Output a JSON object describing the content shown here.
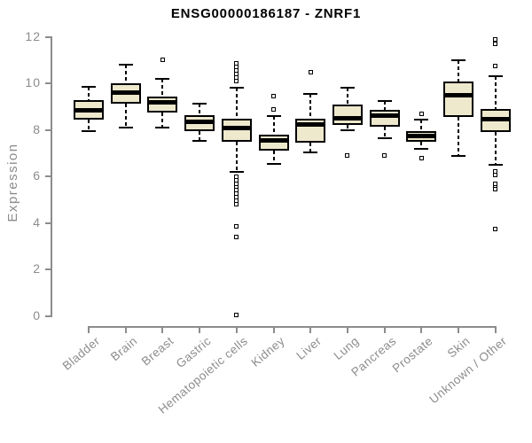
{
  "chart": {
    "title": "ENSG00000186187 - ZNRF1",
    "ylabel": "Expression"
  },
  "colors": {
    "box_fill": "#EEE8CD",
    "box_border": "#000000",
    "axis": "#8C8C8C",
    "title": "#000000",
    "background": "#FFFFFF"
  },
  "chart_data": {
    "type": "boxplot",
    "title": "ENSG00000186187 - ZNRF1",
    "xlabel": "",
    "ylabel": "Expression",
    "ylim": [
      0,
      12
    ],
    "yticks": [
      0,
      2,
      4,
      6,
      8,
      10,
      12
    ],
    "grid": false,
    "legend": false,
    "box_fill": "#EEE8CD",
    "axis_color": "#8C8C8C",
    "categories": [
      "Bladder",
      "Brain",
      "Breast",
      "Gastric",
      "Hematopoietic cells",
      "Kidney",
      "Liver",
      "Lung",
      "Pancreas",
      "Prostate",
      "Skin",
      "Unknown / Other"
    ],
    "series": [
      {
        "name": "Bladder",
        "whisker_low": 7.95,
        "q1": 8.45,
        "median": 8.85,
        "q3": 9.3,
        "whisker_high": 9.85,
        "outliers": []
      },
      {
        "name": "Brain",
        "whisker_low": 8.1,
        "q1": 9.15,
        "median": 9.6,
        "q3": 10.0,
        "whisker_high": 10.8,
        "outliers": []
      },
      {
        "name": "Breast",
        "whisker_low": 8.1,
        "q1": 8.75,
        "median": 9.2,
        "q3": 9.45,
        "whisker_high": 10.2,
        "outliers": [
          11.0
        ]
      },
      {
        "name": "Gastric",
        "whisker_low": 7.55,
        "q1": 7.95,
        "median": 8.35,
        "q3": 8.65,
        "whisker_high": 9.15,
        "outliers": []
      },
      {
        "name": "Hematopoietic cells",
        "whisker_low": 6.2,
        "q1": 7.5,
        "median": 8.1,
        "q3": 8.5,
        "whisker_high": 9.8,
        "outliers": [
          10.85,
          10.7,
          10.55,
          10.4,
          10.25,
          10.1,
          6.0,
          5.85,
          5.7,
          5.55,
          5.4,
          5.25,
          5.1,
          4.95,
          4.8,
          3.85,
          3.4,
          0.05
        ]
      },
      {
        "name": "Kidney",
        "whisker_low": 6.55,
        "q1": 7.1,
        "median": 7.55,
        "q3": 7.8,
        "whisker_high": 8.6,
        "outliers": [
          9.45,
          8.9
        ]
      },
      {
        "name": "Liver",
        "whisker_low": 7.05,
        "q1": 7.45,
        "median": 8.25,
        "q3": 8.5,
        "whisker_high": 9.55,
        "outliers": [
          10.5
        ]
      },
      {
        "name": "Lung",
        "whisker_low": 8.0,
        "q1": 8.2,
        "median": 8.5,
        "q3": 9.1,
        "whisker_high": 9.8,
        "outliers": [
          6.9
        ]
      },
      {
        "name": "Pancreas",
        "whisker_low": 7.65,
        "q1": 8.15,
        "median": 8.6,
        "q3": 8.85,
        "whisker_high": 9.25,
        "outliers": [
          6.9
        ]
      },
      {
        "name": "Prostate",
        "whisker_low": 7.2,
        "q1": 7.5,
        "median": 7.75,
        "q3": 7.95,
        "whisker_high": 8.45,
        "outliers": [
          8.7,
          6.8
        ]
      },
      {
        "name": "Skin",
        "whisker_low": 6.9,
        "q1": 8.55,
        "median": 9.5,
        "q3": 10.1,
        "whisker_high": 11.0,
        "outliers": []
      },
      {
        "name": "Unknown / Other",
        "whisker_low": 6.5,
        "q1": 7.9,
        "median": 8.45,
        "q3": 8.9,
        "whisker_high": 10.3,
        "outliers": [
          11.9,
          11.7,
          10.75,
          6.2,
          6.05,
          5.7,
          5.55,
          5.45,
          3.75
        ]
      }
    ]
  }
}
